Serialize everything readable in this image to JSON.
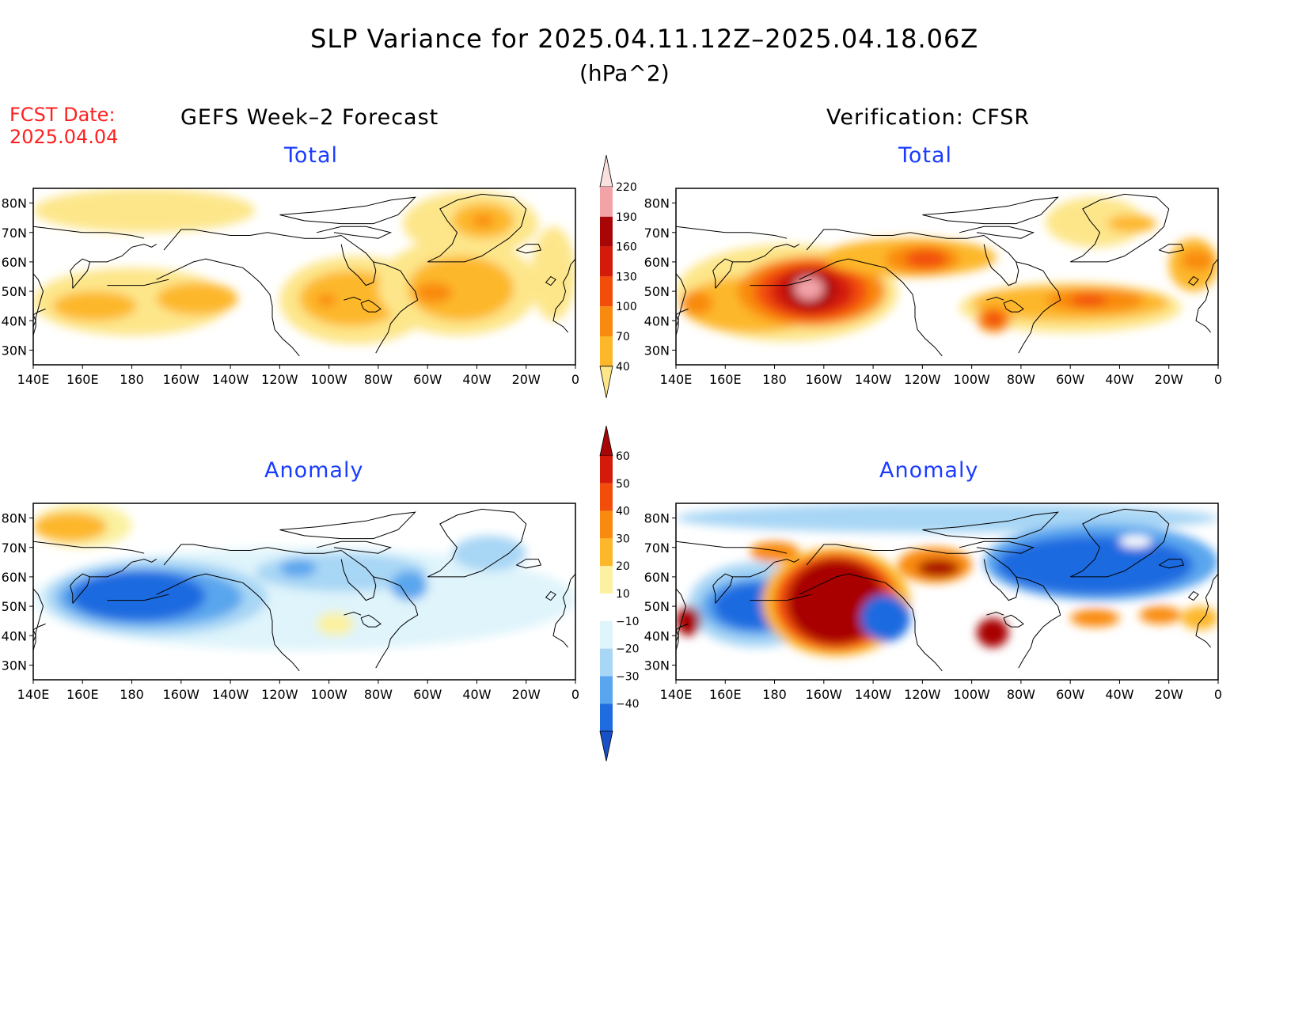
{
  "title": "SLP Variance for 2025.04.11.12Z–2025.04.18.06Z",
  "units": "(hPa^2)",
  "fcst_date": {
    "label": "FCST Date:",
    "value": "2025.04.04"
  },
  "columns": {
    "left": "GEFS Week–2 Forecast",
    "right": "Verification: CFSR"
  },
  "panels": {
    "total_left": "Total",
    "total_right": "Total",
    "anom_left": "Anomaly",
    "anom_right": "Anomaly"
  },
  "axes": {
    "lat_labels": [
      "80N",
      "70N",
      "60N",
      "50N",
      "40N",
      "30N"
    ],
    "lat_values": [
      80,
      70,
      60,
      50,
      40,
      30
    ],
    "lon_labels": [
      "140E",
      "160E",
      "180",
      "160W",
      "140W",
      "120W",
      "100W",
      "80W",
      "60W",
      "40W",
      "20W",
      "0"
    ],
    "lon_values": [
      140,
      160,
      180,
      200,
      220,
      240,
      260,
      280,
      300,
      320,
      340,
      360
    ],
    "lon_range": [
      140,
      360
    ],
    "lat_range": [
      25,
      85
    ]
  },
  "colorbars": {
    "total": {
      "labels": [
        "40",
        "70",
        "100",
        "130",
        "160",
        "190",
        "220"
      ],
      "colors": [
        "#fde68a",
        "#fdb72b",
        "#f98a10",
        "#f24d0a",
        "#d41b0a",
        "#a80606",
        "#f2a3a8",
        "#fbe0e0"
      ]
    },
    "anomaly": {
      "labels": [
        "60",
        "50",
        "40",
        "30",
        "20",
        "10",
        "−10",
        "−20",
        "−30",
        "−40"
      ],
      "colors": [
        "#a80606",
        "#d41b0a",
        "#f24d0a",
        "#f98a10",
        "#fdb72b",
        "#fbf1a0",
        "#ffffff",
        "#dff4fb",
        "#a8d6f5",
        "#5aa6ee",
        "#1f6be0",
        "#1850c8"
      ]
    }
  },
  "chart_data": [
    {
      "type": "heatmap",
      "panel": "GEFS Week-2 Forecast – Total",
      "regions": [
        {
          "lon": [
            140,
            230
          ],
          "lat": [
            70,
            85
          ],
          "level": 40
        },
        {
          "lon": [
            140,
            220
          ],
          "lat": [
            35,
            58
          ],
          "level": 40
        },
        {
          "lon": [
            148,
            182
          ],
          "lat": [
            40,
            50
          ],
          "level": 70
        },
        {
          "lon": [
            190,
            223
          ],
          "lat": [
            42,
            53
          ],
          "level": 70
        },
        {
          "lon": [
            240,
            302
          ],
          "lat": [
            32,
            62
          ],
          "level": 40
        },
        {
          "lon": [
            248,
            290
          ],
          "lat": [
            38,
            57
          ],
          "level": 70
        },
        {
          "lon": [
            255,
            263
          ],
          "lat": [
            45,
            49
          ],
          "level": 100
        },
        {
          "lon": [
            280,
            345
          ],
          "lat": [
            35,
            68
          ],
          "level": 40
        },
        {
          "lon": [
            292,
            335
          ],
          "lat": [
            40,
            62
          ],
          "level": 70
        },
        {
          "lon": [
            295,
            310
          ],
          "lat": [
            46,
            53
          ],
          "level": 100
        },
        {
          "lon": [
            290,
            345
          ],
          "lat": [
            62,
            84
          ],
          "level": 40
        },
        {
          "lon": [
            310,
            335
          ],
          "lat": [
            68,
            80
          ],
          "level": 70
        },
        {
          "lon": [
            318,
            327
          ],
          "lat": [
            72,
            76
          ],
          "level": 100
        },
        {
          "lon": [
            342,
            360
          ],
          "lat": [
            40,
            72
          ],
          "level": 40
        }
      ]
    },
    {
      "type": "heatmap",
      "panel": "Verification: CFSR – Total",
      "regions": [
        {
          "lon": [
            140,
            230
          ],
          "lat": [
            33,
            66
          ],
          "level": 40
        },
        {
          "lon": [
            142,
            200
          ],
          "lat": [
            36,
            55
          ],
          "level": 70
        },
        {
          "lon": [
            142,
            155
          ],
          "lat": [
            42,
            50
          ],
          "level": 100
        },
        {
          "lon": [
            165,
            225
          ],
          "lat": [
            38,
            62
          ],
          "level": 100
        },
        {
          "lon": [
            172,
            218
          ],
          "lat": [
            40,
            60
          ],
          "level": 130
        },
        {
          "lon": [
            178,
            212
          ],
          "lat": [
            42,
            58
          ],
          "level": 160
        },
        {
          "lon": [
            184,
            205
          ],
          "lat": [
            44,
            57
          ],
          "level": 190
        },
        {
          "lon": [
            188,
            200
          ],
          "lat": [
            47,
            55
          ],
          "level": 220
        },
        {
          "lon": [
            200,
            270
          ],
          "lat": [
            55,
            68
          ],
          "level": 70
        },
        {
          "lon": [
            225,
            255
          ],
          "lat": [
            56,
            66
          ],
          "level": 100
        },
        {
          "lon": [
            233,
            250
          ],
          "lat": [
            58,
            64
          ],
          "level": 130
        },
        {
          "lon": [
            255,
            345
          ],
          "lat": [
            36,
            53
          ],
          "level": 40
        },
        {
          "lon": [
            260,
            340
          ],
          "lat": [
            40,
            52
          ],
          "level": 70
        },
        {
          "lon": [
            262,
            276
          ],
          "lat": [
            36,
            45
          ],
          "level": 100
        },
        {
          "lon": [
            265,
            273
          ],
          "lat": [
            38,
            43
          ],
          "level": 130
        },
        {
          "lon": [
            290,
            330
          ],
          "lat": [
            43,
            51
          ],
          "level": 100
        },
        {
          "lon": [
            300,
            315
          ],
          "lat": [
            45,
            49
          ],
          "level": 130
        },
        {
          "lon": [
            290,
            330
          ],
          "lat": [
            65,
            82
          ],
          "level": 40
        },
        {
          "lon": [
            315,
            335
          ],
          "lat": [
            70,
            76
          ],
          "level": 70
        },
        {
          "lon": [
            340,
            360
          ],
          "lat": [
            50,
            68
          ],
          "level": 70
        },
        {
          "lon": [
            345,
            358
          ],
          "lat": [
            57,
            64
          ],
          "level": 100
        }
      ]
    },
    {
      "type": "heatmap",
      "panel": "GEFS Week-2 Forecast – Anomaly",
      "regions": [
        {
          "lon": [
            140,
            360
          ],
          "lat": [
            35,
            70
          ],
          "level": -10
        },
        {
          "lon": [
            140,
            180
          ],
          "lat": [
            70,
            85
          ],
          "level": 10
        },
        {
          "lon": [
            140,
            170
          ],
          "lat": [
            72,
            82
          ],
          "level": 20
        },
        {
          "lon": [
            145,
            235
          ],
          "lat": [
            40,
            66
          ],
          "level": -20
        },
        {
          "lon": [
            150,
            225
          ],
          "lat": [
            43,
            63
          ],
          "level": -30
        },
        {
          "lon": [
            155,
            210
          ],
          "lat": [
            45,
            62
          ],
          "level": -40
        },
        {
          "lon": [
            230,
            300
          ],
          "lat": [
            55,
            68
          ],
          "level": -20
        },
        {
          "lon": [
            240,
            255
          ],
          "lat": [
            60,
            66
          ],
          "level": -30
        },
        {
          "lon": [
            285,
            300
          ],
          "lat": [
            52,
            62
          ],
          "level": -30
        },
        {
          "lon": [
            255,
            270
          ],
          "lat": [
            40,
            48
          ],
          "level": 10
        },
        {
          "lon": [
            310,
            340
          ],
          "lat": [
            62,
            74
          ],
          "level": -20
        }
      ]
    },
    {
      "type": "heatmap",
      "panel": "Verification: CFSR – Anomaly",
      "regions": [
        {
          "lon": [
            140,
            360
          ],
          "lat": [
            75,
            85
          ],
          "level": -20
        },
        {
          "lon": [
            145,
            200
          ],
          "lat": [
            36,
            65
          ],
          "level": -20
        },
        {
          "lon": [
            150,
            195
          ],
          "lat": [
            40,
            60
          ],
          "level": -30
        },
        {
          "lon": [
            155,
            190
          ],
          "lat": [
            42,
            58
          ],
          "level": -40
        },
        {
          "lon": [
            175,
            235
          ],
          "lat": [
            33,
            70
          ],
          "level": 20
        },
        {
          "lon": [
            180,
            230
          ],
          "lat": [
            35,
            68
          ],
          "level": 40
        },
        {
          "lon": [
            185,
            225
          ],
          "lat": [
            37,
            66
          ],
          "level": 60
        },
        {
          "lon": [
            140,
            150
          ],
          "lat": [
            40,
            50
          ],
          "level": 60
        },
        {
          "lon": [
            215,
            235
          ],
          "lat": [
            38,
            54
          ],
          "level": -40
        },
        {
          "lon": [
            230,
            260
          ],
          "lat": [
            58,
            70
          ],
          "level": 30
        },
        {
          "lon": [
            238,
            255
          ],
          "lat": [
            60,
            66
          ],
          "level": 60
        },
        {
          "lon": [
            262,
            275
          ],
          "lat": [
            36,
            46
          ],
          "level": 60
        },
        {
          "lon": [
            265,
            360
          ],
          "lat": [
            52,
            78
          ],
          "level": -30
        },
        {
          "lon": [
            270,
            350
          ],
          "lat": [
            54,
            74
          ],
          "level": -40
        },
        {
          "lon": [
            320,
            333
          ],
          "lat": [
            70,
            74
          ],
          "level": 0
        },
        {
          "lon": [
            300,
            320
          ],
          "lat": [
            43,
            49
          ],
          "level": 30
        },
        {
          "lon": [
            328,
            345
          ],
          "lat": [
            44,
            50
          ],
          "level": 30
        },
        {
          "lon": [
            345,
            360
          ],
          "lat": [
            42,
            50
          ],
          "level": 20
        },
        {
          "lon": [
            170,
            190
          ],
          "lat": [
            65,
            72
          ],
          "level": 30
        }
      ]
    }
  ]
}
